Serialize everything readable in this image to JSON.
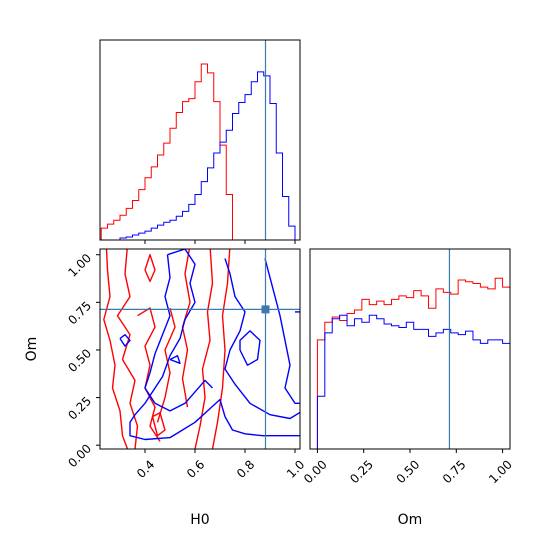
{
  "chart_data": [
    {
      "type": "histogram",
      "panel": "H0 marginal",
      "xlim": [
        0.22,
        1.02
      ],
      "truth": 0.882,
      "bin_width": 0.025,
      "bins_start": 0.225,
      "series": [
        {
          "color": "#ff0000",
          "values": [
            12,
            16,
            20,
            25,
            32,
            40,
            51,
            63,
            74,
            86,
            98,
            113,
            129,
            140,
            143,
            160,
            178,
            169,
            140,
            96,
            46,
            0,
            0,
            0,
            0,
            0,
            0,
            0,
            0,
            0,
            0,
            0
          ]
        },
        {
          "color": "#0000ff",
          "values": [
            0,
            0,
            0,
            2,
            3,
            5,
            7,
            9,
            12,
            15,
            18,
            20,
            24,
            29,
            36,
            46,
            59,
            73,
            88,
            99,
            111,
            128,
            139,
            147,
            160,
            170,
            166,
            138,
            88,
            44,
            14,
            0
          ]
        }
      ]
    },
    {
      "type": "contour",
      "panel": "H0 vs Om",
      "xlabel": "H0",
      "ylabel": "Om",
      "xlim": [
        0.22,
        1.02
      ],
      "ylim": [
        -0.02,
        1.03
      ],
      "xticks": [
        "0.4",
        "0.6",
        "0.8",
        "1.0"
      ],
      "yticks": [
        "0.00",
        "0.25",
        "0.50",
        "0.75",
        "1.00"
      ],
      "truth": {
        "x": 0.882,
        "y": 0.713
      }
    },
    {
      "type": "histogram",
      "panel": "Om marginal",
      "xlabel": "Om",
      "xlim": [
        -0.04,
        1.04
      ],
      "xticks": [
        "0.00",
        "0.25",
        "0.50",
        "0.75",
        "1.00"
      ],
      "truth": 0.713,
      "bin_width": 0.04,
      "bins_start": 0.0,
      "series": [
        {
          "color": "#ff0000",
          "values": [
            0.62,
            0.72,
            0.75,
            0.73,
            0.77,
            0.79,
            0.85,
            0.82,
            0.84,
            0.82,
            0.85,
            0.87,
            0.86,
            0.9,
            0.87,
            0.8,
            0.91,
            0.89,
            0.88,
            0.96,
            0.95,
            0.94,
            0.92,
            0.91,
            0.97,
            0.92,
            0.0
          ]
        },
        {
          "color": "#0000ff",
          "values": [
            0.3,
            0.66,
            0.74,
            0.76,
            0.7,
            0.74,
            0.72,
            0.76,
            0.74,
            0.71,
            0.7,
            0.69,
            0.72,
            0.68,
            0.68,
            0.64,
            0.66,
            0.68,
            0.66,
            0.65,
            0.67,
            0.62,
            0.6,
            0.62,
            0.62,
            0.6,
            0.3
          ]
        }
      ]
    }
  ]
}
